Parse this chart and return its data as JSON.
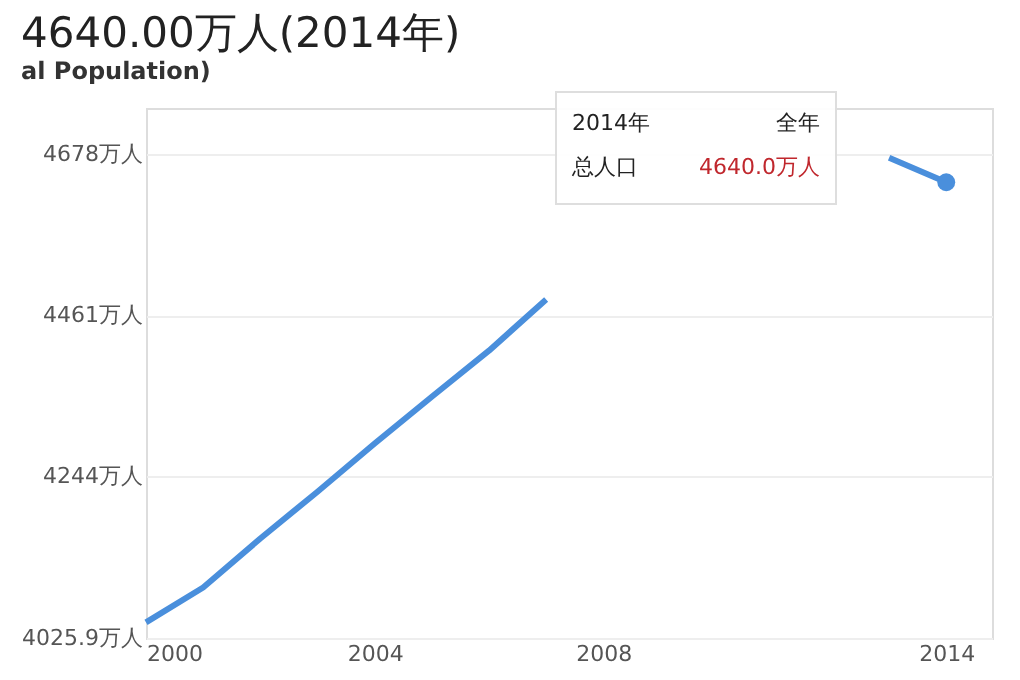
{
  "chart_data": {
    "type": "line",
    "title": "4640.00万人(2014年)",
    "subtitle": "al Population)",
    "x": [
      2000,
      2001,
      2002,
      2003,
      2004,
      2005,
      2006,
      2007,
      2008,
      2009,
      2010,
      2011,
      2012,
      2013,
      2014
    ],
    "series": [
      {
        "color": "#4a8fdc",
        "marker": "none",
        "values": [
          4047,
          4094,
          4160,
          4223,
          4288,
          4351,
          4413,
          4482,
          null,
          null,
          null,
          null,
          null,
          4673,
          4640
        ]
      },
      {
        "type": "scatter",
        "marker": "circle",
        "color": "#4a8fdc",
        "x": [
          2014
        ],
        "values": [
          4640
        ]
      }
    ],
    "xlim": [
      2000,
      2014.8
    ],
    "xticks": [
      2000,
      2004,
      2008,
      2014
    ],
    "ylim": [
      4025.9,
      4740
    ],
    "yticks": [
      {
        "value": 4025.9,
        "label": "4025.9万人"
      },
      {
        "value": 4244,
        "label": "4244万人"
      },
      {
        "value": 4461,
        "label": "4461万人"
      },
      {
        "value": 4678,
        "label": "4678万人"
      }
    ],
    "grid": "y",
    "line_style": "solid",
    "annotations": [
      "2014年",
      "全年",
      "总人口",
      "4640.0万人"
    ]
  }
}
